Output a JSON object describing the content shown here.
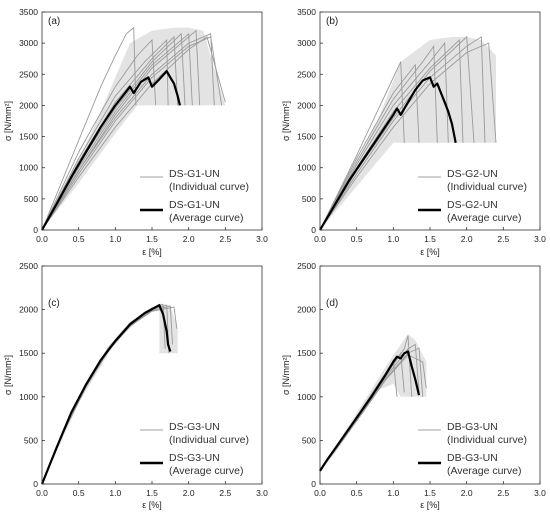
{
  "chart_data": [
    {
      "type": "line",
      "panel_label": "(a)",
      "xlabel": "ε  [%]",
      "ylabel": "σ [N/mm²]",
      "xlim": [
        0,
        3.0
      ],
      "ylim": [
        0,
        3500
      ],
      "x_ticks": [
        "0.0",
        "0.5",
        "1.0",
        "1.5",
        "2.0",
        "2.5",
        "3.0"
      ],
      "y_ticks": [
        "0",
        "500",
        "1000",
        "1500",
        "2000",
        "2500",
        "3000",
        "3500"
      ],
      "grid": false,
      "legend_position": "lower-right",
      "legend": [
        {
          "line1": "DS-G1-UN",
          "line2": "(Individual curve)",
          "style": "thin-gray"
        },
        {
          "line1": "DS-G1-UN",
          "line2": "(Average curve)",
          "style": "thick-black"
        }
      ],
      "band": {
        "x": [
          0.0,
          0.4,
          0.8,
          1.0,
          1.2,
          1.5,
          1.8,
          2.0,
          2.2,
          2.5,
          2.5,
          2.2,
          2.0,
          1.8,
          1.5,
          1.3,
          1.0,
          0.5,
          0.0
        ],
        "y": [
          0,
          850,
          1900,
          2450,
          3000,
          3200,
          3250,
          3250,
          3200,
          2000,
          2000,
          2000,
          2000,
          2000,
          2000,
          2000,
          1550,
          750,
          0
        ]
      },
      "individual_curves": [
        {
          "x": [
            0,
            0.4,
            0.8,
            1.0,
            1.15,
            1.25,
            1.28
          ],
          "y": [
            0,
            1150,
            2300,
            2800,
            3150,
            3250,
            2000
          ]
        },
        {
          "x": [
            0,
            0.5,
            1.0,
            1.3,
            1.5,
            1.55
          ],
          "y": [
            0,
            1250,
            2300,
            2800,
            3050,
            2000
          ]
        },
        {
          "x": [
            0,
            0.5,
            1.0,
            1.4,
            1.7,
            1.72
          ],
          "y": [
            0,
            1150,
            2150,
            2700,
            3050,
            2000
          ]
        },
        {
          "x": [
            0,
            0.5,
            1.0,
            1.5,
            1.8,
            1.85
          ],
          "y": [
            0,
            1100,
            2050,
            2750,
            3100,
            2000
          ]
        },
        {
          "x": [
            0,
            0.5,
            1.0,
            1.5,
            1.9,
            1.95
          ],
          "y": [
            0,
            1050,
            1950,
            2700,
            3150,
            2000
          ]
        },
        {
          "x": [
            0,
            0.5,
            1.0,
            1.5,
            2.0,
            2.05
          ],
          "y": [
            0,
            1000,
            1900,
            2650,
            3150,
            2000
          ]
        },
        {
          "x": [
            0,
            0.5,
            1.0,
            1.5,
            2.1,
            2.15
          ],
          "y": [
            0,
            950,
            1850,
            2600,
            3200,
            2000
          ]
        },
        {
          "x": [
            0,
            0.5,
            1.0,
            1.5,
            2.0,
            2.3,
            2.35
          ],
          "y": [
            0,
            950,
            1800,
            2500,
            3000,
            3150,
            2000
          ]
        },
        {
          "x": [
            0,
            0.5,
            1.0,
            1.5,
            2.0,
            2.3,
            2.45
          ],
          "y": [
            0,
            900,
            1750,
            2450,
            2950,
            3100,
            2000
          ]
        },
        {
          "x": [
            0,
            0.5,
            1.0,
            1.5,
            2.0,
            2.25,
            2.5
          ],
          "y": [
            0,
            850,
            1650,
            2350,
            2900,
            3100,
            2050
          ]
        }
      ],
      "average_curve": {
        "x": [
          0,
          0.2,
          0.4,
          0.6,
          0.8,
          1.0,
          1.1,
          1.2,
          1.25,
          1.35,
          1.45,
          1.5,
          1.6,
          1.7,
          1.75,
          1.8,
          1.85,
          1.88
        ],
        "y": [
          0,
          420,
          850,
          1250,
          1650,
          2000,
          2150,
          2300,
          2200,
          2380,
          2450,
          2300,
          2420,
          2550,
          2450,
          2350,
          2150,
          2000
        ]
      }
    },
    {
      "type": "line",
      "panel_label": "(b)",
      "xlabel": "ε  [%]",
      "ylabel": "σ [N/mm²]",
      "xlim": [
        0,
        3.0
      ],
      "ylim": [
        0,
        3500
      ],
      "x_ticks": [
        "0.0",
        "0.5",
        "1.0",
        "1.5",
        "2.0",
        "2.5",
        "3.0"
      ],
      "y_ticks": [
        "0",
        "500",
        "1000",
        "1500",
        "2000",
        "2500",
        "3000",
        "3500"
      ],
      "grid": false,
      "legend_position": "lower-right",
      "legend": [
        {
          "line1": "DS-G2-UN",
          "line2": "(Individual curve)",
          "style": "thin-gray"
        },
        {
          "line1": "DS-G2-UN",
          "line2": "(Average curve)",
          "style": "thick-black"
        }
      ],
      "band": {
        "x": [
          0.0,
          0.4,
          0.8,
          1.1,
          1.5,
          1.8,
          2.0,
          2.2,
          2.4,
          2.4,
          2.0,
          1.5,
          1.3,
          1.0,
          0.5,
          0.0
        ],
        "y": [
          0,
          850,
          1800,
          2700,
          3050,
          3100,
          3100,
          3050,
          2800,
          1400,
          1400,
          1400,
          1400,
          1400,
          700,
          0
        ]
      },
      "individual_curves": [
        {
          "x": [
            0,
            0.5,
            0.9,
            1.1,
            1.15
          ],
          "y": [
            0,
            1200,
            2200,
            2700,
            1400
          ]
        },
        {
          "x": [
            0,
            0.5,
            1.0,
            1.3,
            1.35
          ],
          "y": [
            0,
            1150,
            2200,
            2650,
            1400
          ]
        },
        {
          "x": [
            0,
            0.5,
            1.0,
            1.4,
            1.55,
            1.6
          ],
          "y": [
            0,
            1100,
            2100,
            2700,
            2950,
            1400
          ]
        },
        {
          "x": [
            0,
            0.5,
            1.0,
            1.5,
            1.7,
            1.75
          ],
          "y": [
            0,
            1050,
            2000,
            2700,
            3000,
            1400
          ]
        },
        {
          "x": [
            0,
            0.5,
            1.0,
            1.5,
            1.9,
            1.95
          ],
          "y": [
            0,
            1000,
            1900,
            2600,
            3050,
            1400
          ]
        },
        {
          "x": [
            0,
            0.5,
            1.0,
            1.5,
            2.0,
            2.1
          ],
          "y": [
            0,
            950,
            1800,
            2550,
            3100,
            1400
          ]
        },
        {
          "x": [
            0,
            0.5,
            1.0,
            1.5,
            2.0,
            2.2,
            2.25
          ],
          "y": [
            0,
            900,
            1750,
            2450,
            2950,
            3100,
            1400
          ]
        },
        {
          "x": [
            0,
            0.5,
            1.0,
            1.5,
            2.0,
            2.3,
            2.4
          ],
          "y": [
            0,
            850,
            1650,
            2350,
            2850,
            3000,
            1400
          ]
        }
      ],
      "average_curve": {
        "x": [
          0,
          0.2,
          0.4,
          0.6,
          0.8,
          1.0,
          1.05,
          1.1,
          1.2,
          1.3,
          1.4,
          1.5,
          1.55,
          1.6,
          1.7,
          1.75,
          1.8,
          1.85
        ],
        "y": [
          0,
          400,
          800,
          1150,
          1500,
          1850,
          1950,
          1850,
          2050,
          2250,
          2400,
          2450,
          2300,
          2350,
          2050,
          1900,
          1700,
          1400
        ]
      }
    },
    {
      "type": "line",
      "panel_label": "(c)",
      "xlabel": "ε  [%]",
      "ylabel": "σ [N/mm²]",
      "xlim": [
        0,
        3.0
      ],
      "ylim": [
        0,
        2500
      ],
      "x_ticks": [
        "0.0",
        "0.5",
        "1.0",
        "1.5",
        "2.0",
        "2.5",
        "3.0"
      ],
      "y_ticks": [
        "0",
        "500",
        "1000",
        "1500",
        "2000",
        "2500"
      ],
      "grid": false,
      "legend_position": "lower-right",
      "legend": [
        {
          "line1": "DS-G3-UN",
          "line2": "(Individual curve)",
          "style": "thin-gray"
        },
        {
          "line1": "DS-G3-UN",
          "line2": "(Average curve)",
          "style": "thick-black"
        }
      ],
      "band": {
        "x": [
          0.0,
          0.2,
          0.5,
          0.8,
          1.0,
          1.2,
          1.4,
          1.6,
          1.75,
          1.85,
          1.85,
          1.6,
          1.6,
          1.4,
          1.0,
          0.5,
          0.0
        ],
        "y": [
          0,
          400,
          950,
          1400,
          1650,
          1850,
          1980,
          2070,
          2050,
          1780,
          1500,
          1500,
          2040,
          1950,
          1620,
          930,
          0
        ]
      },
      "individual_curves": [
        {
          "x": [
            0,
            0.3,
            0.6,
            0.9,
            1.2,
            1.5,
            1.65,
            1.68
          ],
          "y": [
            0,
            620,
            1150,
            1560,
            1850,
            2020,
            2060,
            1550
          ]
        },
        {
          "x": [
            0,
            0.3,
            0.6,
            0.9,
            1.2,
            1.5,
            1.7,
            1.73
          ],
          "y": [
            0,
            610,
            1130,
            1540,
            1830,
            2000,
            2050,
            1500
          ]
        },
        {
          "x": [
            0,
            0.3,
            0.6,
            0.9,
            1.2,
            1.5,
            1.75,
            1.78
          ],
          "y": [
            0,
            600,
            1120,
            1530,
            1820,
            1990,
            2040,
            1600
          ]
        },
        {
          "x": [
            0,
            0.3,
            0.6,
            0.9,
            1.2,
            1.5,
            1.8,
            1.84
          ],
          "y": [
            0,
            600,
            1110,
            1520,
            1810,
            1980,
            2030,
            1780
          ]
        }
      ],
      "average_curve": {
        "x": [
          0,
          0.2,
          0.4,
          0.6,
          0.8,
          1.0,
          1.2,
          1.4,
          1.6,
          1.65,
          1.7,
          1.72,
          1.75
        ],
        "y": [
          0,
          420,
          820,
          1140,
          1420,
          1640,
          1830,
          1960,
          2050,
          1950,
          1750,
          1600,
          1520
        ]
      }
    },
    {
      "type": "line",
      "panel_label": "(d)",
      "xlabel": "ε  [%]",
      "ylabel": "σ [N/mm²]",
      "xlim": [
        0,
        3.0
      ],
      "ylim": [
        0,
        2500
      ],
      "x_ticks": [
        "0.0",
        "0.5",
        "1.0",
        "1.5",
        "2.0",
        "2.5",
        "3.0"
      ],
      "y_ticks": [
        "0",
        "500",
        "1000",
        "1500",
        "2000",
        "2500"
      ],
      "grid": false,
      "legend_position": "lower-right",
      "legend": [
        {
          "line1": "DB-G3-UN",
          "line2": "(Individual curve)",
          "style": "thin-gray"
        },
        {
          "line1": "DB-G3-UN",
          "line2": "(Average curve)",
          "style": "thick-black"
        }
      ],
      "band": {
        "x": [
          0.0,
          0.3,
          0.6,
          0.9,
          1.1,
          1.2,
          1.3,
          1.45,
          1.45,
          1.3,
          1.1,
          1.0,
          0.8,
          0.5,
          0.2,
          0.0
        ],
        "y": [
          150,
          550,
          950,
          1350,
          1600,
          1720,
          1650,
          1400,
          1000,
          1000,
          1000,
          1150,
          1080,
          730,
          350,
          150
        ]
      },
      "individual_curves": [
        {
          "x": [
            0,
            0.3,
            0.6,
            0.9,
            1.0,
            1.05
          ],
          "y": [
            150,
            520,
            900,
            1280,
            1420,
            1000
          ]
        },
        {
          "x": [
            0,
            0.3,
            0.6,
            0.9,
            1.1,
            1.15
          ],
          "y": [
            150,
            510,
            880,
            1260,
            1500,
            1050
          ]
        },
        {
          "x": [
            0,
            0.3,
            0.6,
            0.9,
            1.15,
            1.2,
            1.25
          ],
          "y": [
            150,
            500,
            870,
            1250,
            1550,
            1700,
            1000
          ]
        },
        {
          "x": [
            0,
            0.3,
            0.6,
            0.9,
            1.2,
            1.3,
            1.35
          ],
          "y": [
            150,
            500,
            860,
            1230,
            1550,
            1600,
            1050
          ]
        },
        {
          "x": [
            0,
            0.3,
            0.6,
            0.9,
            1.2,
            1.35,
            1.4
          ],
          "y": [
            150,
            490,
            850,
            1210,
            1500,
            1560,
            1000
          ]
        },
        {
          "x": [
            0,
            0.3,
            0.6,
            0.9,
            1.2,
            1.4,
            1.45
          ],
          "y": [
            150,
            490,
            840,
            1200,
            1480,
            1400,
            1100
          ]
        }
      ],
      "average_curve": {
        "x": [
          0,
          0.1,
          0.3,
          0.5,
          0.7,
          0.9,
          1.0,
          1.05,
          1.1,
          1.15,
          1.2,
          1.25,
          1.3,
          1.35
        ],
        "y": [
          150,
          280,
          520,
          760,
          1000,
          1260,
          1400,
          1460,
          1440,
          1500,
          1520,
          1350,
          1200,
          1020
        ]
      }
    }
  ]
}
